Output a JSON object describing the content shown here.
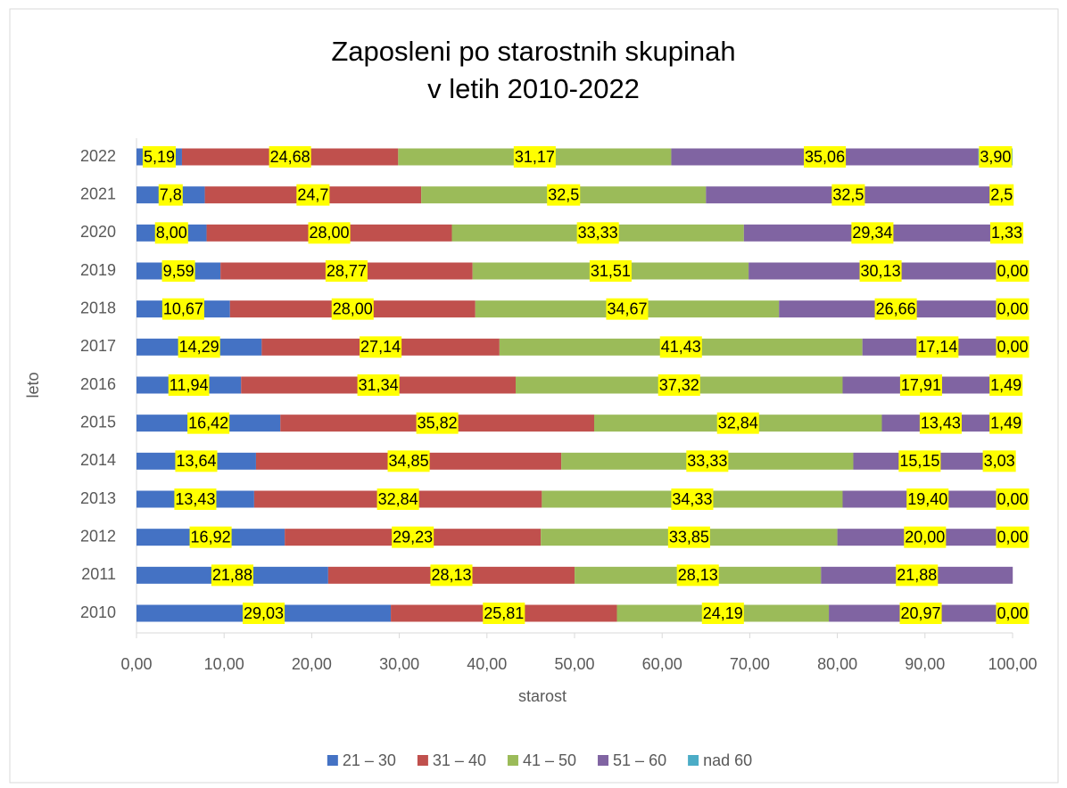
{
  "chart_data": {
    "type": "stacked-bar-horizontal",
    "title": [
      "Zaposleni po starostnih skupinah",
      "v letih 2010-2022"
    ],
    "xlabel": "starost",
    "ylabel": "leto",
    "categories": [
      "2010",
      "2011",
      "2012",
      "2013",
      "2014",
      "2015",
      "2016",
      "2017",
      "2018",
      "2019",
      "2020",
      "2021",
      "2022"
    ],
    "series": [
      {
        "name": "21 – 30",
        "color": "#4472c4",
        "values": [
          29.03,
          21.88,
          16.92,
          13.43,
          13.64,
          16.42,
          11.94,
          14.29,
          10.67,
          9.59,
          8.0,
          7.8,
          5.19
        ],
        "value_labels": [
          "29,03",
          "21,88",
          "16,92",
          "13,43",
          "13,64",
          "16,42",
          "11,94",
          "14,29",
          "10,67",
          "9,59",
          "8,00",
          "7,8",
          "5,19"
        ]
      },
      {
        "name": "31 – 40",
        "color": "#c0504d",
        "values": [
          25.81,
          28.13,
          29.23,
          32.84,
          34.85,
          35.82,
          31.34,
          27.14,
          28.0,
          28.77,
          28.0,
          24.7,
          24.68
        ],
        "value_labels": [
          "25,81",
          "28,13",
          "29,23",
          "32,84",
          "34,85",
          "35,82",
          "31,34",
          "27,14",
          "28,00",
          "28,77",
          "28,00",
          "24,7",
          "24,68"
        ]
      },
      {
        "name": "41 – 50",
        "color": "#9bbb59",
        "values": [
          24.19,
          28.13,
          33.85,
          34.33,
          33.33,
          32.84,
          37.32,
          41.43,
          34.67,
          31.51,
          33.33,
          32.5,
          31.17
        ],
        "value_labels": [
          "24,19",
          "28,13",
          "33,85",
          "34,33",
          "33,33",
          "32,84",
          "37,32",
          "41,43",
          "34,67",
          "31,51",
          "33,33",
          "32,5",
          "31,17"
        ]
      },
      {
        "name": "51 – 60",
        "color": "#8064a2",
        "values": [
          20.97,
          21.88,
          20.0,
          19.4,
          15.15,
          13.43,
          17.91,
          17.14,
          26.66,
          30.13,
          29.34,
          32.5,
          35.06
        ],
        "value_labels": [
          "20,97",
          "21,88",
          "20,00",
          "19,40",
          "15,15",
          "13,43",
          "17,91",
          "17,14",
          "26,66",
          "30,13",
          "29,34",
          "32,5",
          "35,06"
        ]
      },
      {
        "name": "nad 60",
        "color": "#4bacc6",
        "values": [
          0.0,
          null,
          0.0,
          0.0,
          3.03,
          1.49,
          1.49,
          0.0,
          0.0,
          0.0,
          1.33,
          2.5,
          3.9
        ],
        "value_labels": [
          "0,00",
          null,
          "0,00",
          "0,00",
          "3,03",
          "1,49",
          "1,49",
          "0,00",
          "0,00",
          "0,00",
          "1,33",
          "2,5",
          "3,90"
        ]
      }
    ],
    "xlim": [
      0,
      100
    ],
    "xticks": [
      {
        "value": 0,
        "label": "0,00"
      },
      {
        "value": 10,
        "label": "10,00"
      },
      {
        "value": 20,
        "label": "20,00"
      },
      {
        "value": 30,
        "label": "30,00"
      },
      {
        "value": 40,
        "label": "40,00"
      },
      {
        "value": 50,
        "label": "50,00"
      },
      {
        "value": 60,
        "label": "60,00"
      },
      {
        "value": 70,
        "label": "70,00"
      },
      {
        "value": 80,
        "label": "80,00"
      },
      {
        "value": 90,
        "label": "90,00"
      },
      {
        "value": 100,
        "label": "100,00"
      }
    ],
    "grid": false,
    "legend": "bottom"
  }
}
